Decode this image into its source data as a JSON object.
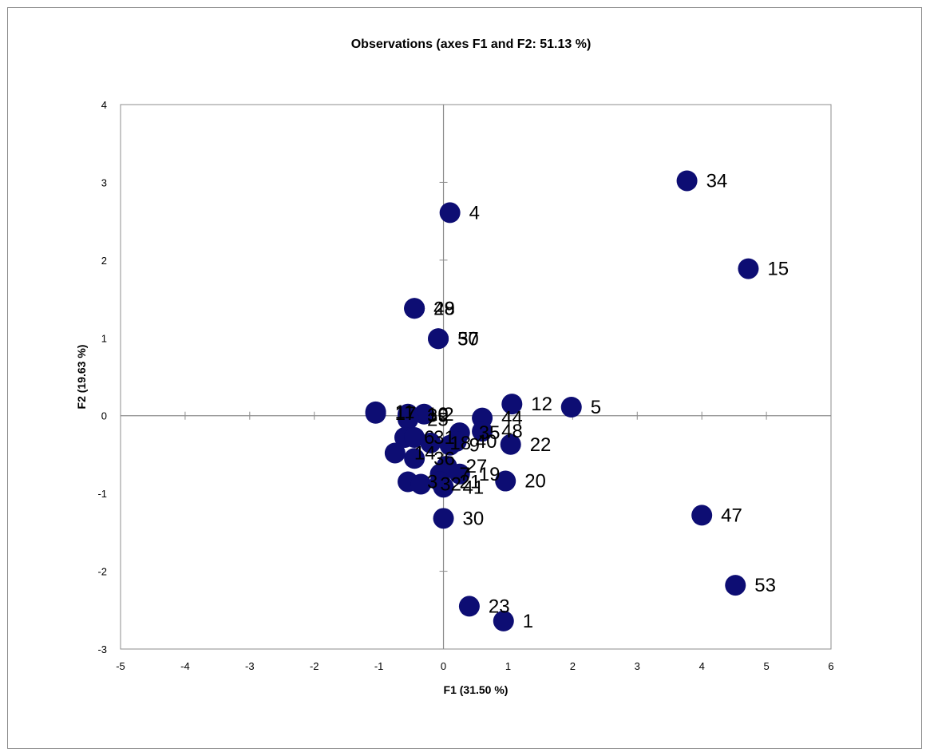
{
  "chart_data": {
    "type": "scatter",
    "title": "Observations (axes F1 and F2: 51.13 %)",
    "xlabel": "F1 (31.50 %)",
    "ylabel": "F2 (19.63 %)",
    "xlim": [
      -5,
      6
    ],
    "ylim": [
      -3,
      4
    ],
    "x_ticks": [
      -5,
      -4,
      -3,
      -2,
      -1,
      0,
      1,
      2,
      3,
      4,
      5,
      6
    ],
    "y_ticks": [
      -3,
      -2,
      -1,
      0,
      1,
      2,
      3,
      4
    ],
    "grid": false,
    "origin_axes": true,
    "marker_color": "#0d0d73",
    "points": [
      {
        "label": "34",
        "x": 3.77,
        "y": 3.02
      },
      {
        "label": "15",
        "x": 4.72,
        "y": 1.89
      },
      {
        "label": "4",
        "x": 0.1,
        "y": 2.61
      },
      {
        "label": "48",
        "x": -0.45,
        "y": 1.38
      },
      {
        "label": "29",
        "x": -0.45,
        "y": 1.38
      },
      {
        "label": "50",
        "x": -0.08,
        "y": 0.99
      },
      {
        "label": "37",
        "x": -0.08,
        "y": 0.99
      },
      {
        "label": "12",
        "x": 1.06,
        "y": 0.15
      },
      {
        "label": "5",
        "x": 1.98,
        "y": 0.11
      },
      {
        "label": "44",
        "x": 0.6,
        "y": -0.03
      },
      {
        "label": "48",
        "x": 0.6,
        "y": -0.2
      },
      {
        "label": "22",
        "x": 1.04,
        "y": -0.37
      },
      {
        "label": "2",
        "x": -0.3,
        "y": 0.02
      },
      {
        "label": "10",
        "x": -0.55,
        "y": 0.02
      },
      {
        "label": "39",
        "x": -0.55,
        "y": 0.0
      },
      {
        "label": "25",
        "x": -0.55,
        "y": -0.05
      },
      {
        "label": "11",
        "x": -1.05,
        "y": 0.05
      },
      {
        "label": "17",
        "x": -1.05,
        "y": 0.03
      },
      {
        "label": "6",
        "x": -0.6,
        "y": -0.28
      },
      {
        "label": "31",
        "x": -0.45,
        "y": -0.28
      },
      {
        "label": "35",
        "x": 0.25,
        "y": -0.22
      },
      {
        "label": "40",
        "x": 0.2,
        "y": -0.33
      },
      {
        "label": "18",
        "x": -0.2,
        "y": -0.35
      },
      {
        "label": "9",
        "x": 0.1,
        "y": -0.38
      },
      {
        "label": "14",
        "x": -0.75,
        "y": -0.48
      },
      {
        "label": "36",
        "x": -0.45,
        "y": -0.55
      },
      {
        "label": "27",
        "x": 0.05,
        "y": -0.65
      },
      {
        "label": "7",
        "x": -0.05,
        "y": -0.75
      },
      {
        "label": "19",
        "x": 0.25,
        "y": -0.75
      },
      {
        "label": "20",
        "x": 0.96,
        "y": -0.84
      },
      {
        "label": "3",
        "x": -0.55,
        "y": -0.85
      },
      {
        "label": "32",
        "x": -0.35,
        "y": -0.88
      },
      {
        "label": "21",
        "x": -0.05,
        "y": -0.85
      },
      {
        "label": "41",
        "x": 0.0,
        "y": -0.92
      },
      {
        "label": "30",
        "x": 0.0,
        "y": -1.32
      },
      {
        "label": "47",
        "x": 4.0,
        "y": -1.28
      },
      {
        "label": "53",
        "x": 4.52,
        "y": -2.18
      },
      {
        "label": "23",
        "x": 0.4,
        "y": -2.45
      },
      {
        "label": "1",
        "x": 0.93,
        "y": -2.64
      }
    ]
  }
}
